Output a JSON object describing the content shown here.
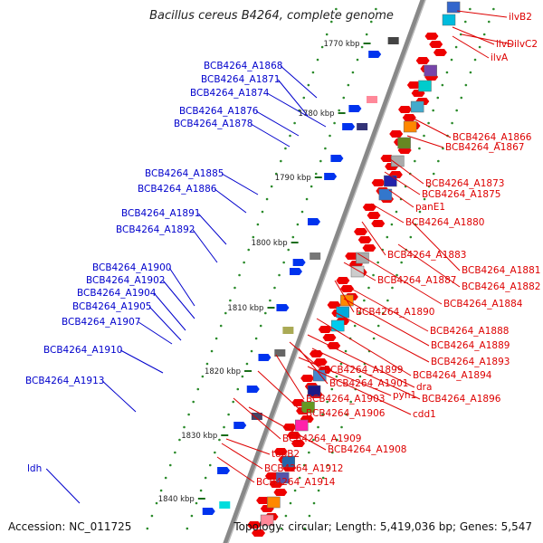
{
  "title": "Bacillus cereus B4264, complete genome",
  "footer": {
    "accession": "Accession: NC_011725",
    "summary": "Topology: circular; Length: 5,419,036 bp; Genes: 5,547"
  },
  "colors": {
    "forward_label": "#0000cc",
    "reverse_label": "#dd0000",
    "backbone": "#888888",
    "tick_dot": "#2a8a2a"
  },
  "scale_ticks": [
    "1770 kbp",
    "1780 kbp",
    "1790 kbp",
    "1800 kbp",
    "1810 kbp",
    "1820 kbp",
    "1830 kbp",
    "1840 kbp"
  ],
  "left_labels": [
    "BCB4264_A1868",
    "BCB4264_A1871",
    "BCB4264_A1874",
    "BCB4264_A1876",
    "BCB4264_A1878",
    "BCB4264_A1885",
    "BCB4264_A1886",
    "BCB4264_A1891",
    "BCB4264_A1892",
    "BCB4264_A1900",
    "BCB4264_A1902",
    "BCB4264_A1904",
    "BCB4264_A1905",
    "BCB4264_A1907",
    "BCB4264_A1910",
    "BCB4264_A1913",
    "ldh"
  ],
  "right_labels": [
    "ilvB2",
    "ilvC2",
    "ilvD",
    "ilvA",
    "BCB4264_A1866",
    "BCB4264_A1867",
    "BCB4264_A1873",
    "BCB4264_A1875",
    "panE1",
    "BCB4264_A1880",
    "BCB4264_A1883",
    "BCB4264_A1881",
    "BCB4264_A1887",
    "BCB4264_A1882",
    "BCB4264_A1884",
    "BCB4264_A1890",
    "BCB4264_A1888",
    "BCB4264_A1889",
    "BCB4264_A1893",
    "BCB4264_A1899",
    "BCB4264_A1894",
    "BCB4264_A1901",
    "dra",
    "pyn1",
    "BCB4264_A1896",
    "BCB4264_A1903",
    "cdd1",
    "BCB4264_A1906",
    "BCB4264_A1909",
    "BCB4264_A1908",
    "topB2",
    "BCB4264_A1912",
    "BCB4264_A1914"
  ]
}
